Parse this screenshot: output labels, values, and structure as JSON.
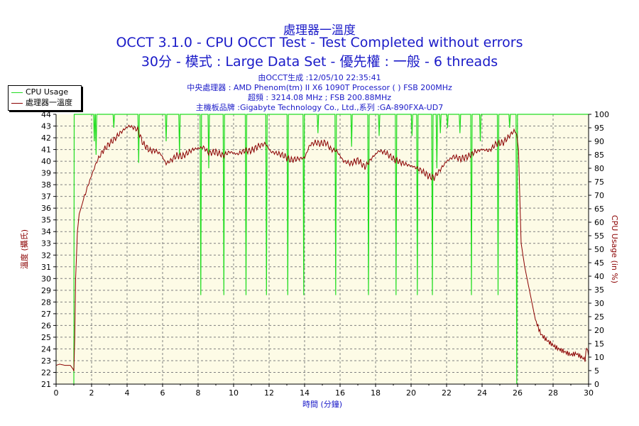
{
  "chart_data": {
    "type": "line",
    "title": "處理器一溫度",
    "subtitle": "OCCT 3.1.0 - CPU OCCT Test - Test Completed without errors",
    "subtitle2": "30分 - 模式 : Large Data Set - 優先權 : 一般 - 6 threads",
    "info_lines": [
      "由OCCT生成 :12/05/10 22:35:41",
      "中央處理器 : AMD Phenom(tm) II X6 1090T Processor (  ) FSB 200MHz",
      "超頻 : 3214.08 MHz ; FSB 200.88MHz",
      "主機板品牌 :Gigabyte Technology Co., Ltd.,系列 :GA-890FXA-UD7"
    ],
    "xlabel": "時間 (分鐘)",
    "ylabel": "溫度 (攝氏)",
    "y2label": "CPU Usage (in %)",
    "xlim": [
      0,
      30
    ],
    "ylim": [
      21,
      44
    ],
    "y2lim": [
      0,
      100
    ],
    "x_ticks": [
      "0",
      "2",
      "4",
      "6",
      "8",
      "10",
      "12",
      "14",
      "16",
      "18",
      "20",
      "22",
      "24",
      "26",
      "28",
      "30"
    ],
    "y_ticks": [
      "21",
      "22",
      "23",
      "24",
      "25",
      "26",
      "27",
      "28",
      "29",
      "30",
      "31",
      "32",
      "33",
      "34",
      "35",
      "36",
      "37",
      "38",
      "39",
      "40",
      "41",
      "42",
      "43",
      "44"
    ],
    "y2_ticks": [
      "0",
      "5",
      "10",
      "15",
      "20",
      "25",
      "30",
      "35",
      "40",
      "45",
      "50",
      "55",
      "60",
      "65",
      "70",
      "75",
      "80",
      "85",
      "90",
      "95",
      "100"
    ],
    "grid": true,
    "legend_position": "top-left",
    "colors": {
      "temperature": "#8b0000",
      "usage": "#22dd22",
      "text": "#1a1ac8",
      "plot_bg": "#fdfbe6"
    },
    "series": [
      {
        "name": "CPU Usage",
        "axis": "right",
        "x": [
          0.98,
          1.0,
          1.02,
          1.05,
          1.1,
          30
        ],
        "y": [
          0,
          0,
          100,
          100,
          100,
          100
        ],
        "dips": [
          {
            "x": 2.15,
            "y": 90
          },
          {
            "x": 2.25,
            "y": 85
          },
          {
            "x": 3.25,
            "y": 95
          },
          {
            "x": 4.65,
            "y": 82
          },
          {
            "x": 6.2,
            "y": 90
          },
          {
            "x": 6.95,
            "y": 85
          },
          {
            "x": 8.15,
            "y": 33
          },
          {
            "x": 8.6,
            "y": 80
          },
          {
            "x": 9.45,
            "y": 33
          },
          {
            "x": 10.7,
            "y": 33
          },
          {
            "x": 11.85,
            "y": 33
          },
          {
            "x": 13.05,
            "y": 33
          },
          {
            "x": 13.95,
            "y": 33
          },
          {
            "x": 14.75,
            "y": 93
          },
          {
            "x": 15.75,
            "y": 33
          },
          {
            "x": 16.65,
            "y": 88
          },
          {
            "x": 17.6,
            "y": 33
          },
          {
            "x": 18.2,
            "y": 92
          },
          {
            "x": 19.15,
            "y": 33
          },
          {
            "x": 20.05,
            "y": 92
          },
          {
            "x": 20.35,
            "y": 33
          },
          {
            "x": 21.2,
            "y": 33
          },
          {
            "x": 21.45,
            "y": 80
          },
          {
            "x": 21.65,
            "y": 93
          },
          {
            "x": 22.05,
            "y": 95
          },
          {
            "x": 22.75,
            "y": 93
          },
          {
            "x": 23.4,
            "y": 33
          },
          {
            "x": 23.9,
            "y": 90
          },
          {
            "x": 24.9,
            "y": 33
          },
          {
            "x": 25.55,
            "y": 95
          },
          {
            "x": 25.95,
            "y": 0
          }
        ]
      },
      {
        "name": "處理器一溫度",
        "axis": "left",
        "x": [
          0,
          0.2,
          0.5,
          0.8,
          0.95,
          1.0,
          1.05,
          1.1,
          1.2,
          1.3,
          1.5,
          1.7,
          2.0,
          2.3,
          2.6,
          3.0,
          3.3,
          3.6,
          3.9,
          4.1,
          4.3,
          4.6,
          4.9,
          5.3,
          5.6,
          5.9,
          6.2,
          6.5,
          6.8,
          7.1,
          7.4,
          7.7,
          8.0,
          8.3,
          8.6,
          9.0,
          9.4,
          9.8,
          10.2,
          10.6,
          11.0,
          11.4,
          11.8,
          12.1,
          12.4,
          12.8,
          13.2,
          13.6,
          14.0,
          14.3,
          14.6,
          14.9,
          15.2,
          15.5,
          15.8,
          16.2,
          16.6,
          17.0,
          17.4,
          17.8,
          18.2,
          18.6,
          19.0,
          19.4,
          19.8,
          20.2,
          20.6,
          21.0,
          21.3,
          21.6,
          22.0,
          22.4,
          22.8,
          23.2,
          23.6,
          24.0,
          24.4,
          24.8,
          25.2,
          25.5,
          25.8,
          25.95,
          26.05,
          26.2,
          26.4,
          26.6,
          26.8,
          27.0,
          27.3,
          27.6,
          28.0,
          28.3,
          28.6,
          29.0,
          29.3,
          29.6,
          29.8,
          29.9,
          30.0
        ],
        "y": [
          22.6,
          22.7,
          22.6,
          22.6,
          22.3,
          22.1,
          25.0,
          30.0,
          34.0,
          35.5,
          36.5,
          37.5,
          38.8,
          40.0,
          40.8,
          41.5,
          41.9,
          42.4,
          42.8,
          43.0,
          42.9,
          42.7,
          41.5,
          40.9,
          40.9,
          40.6,
          39.8,
          40.1,
          40.5,
          40.4,
          40.7,
          41.0,
          41.1,
          41.2,
          40.7,
          40.8,
          40.5,
          40.8,
          40.6,
          40.9,
          40.9,
          41.3,
          41.5,
          40.8,
          40.7,
          40.5,
          40.1,
          40.2,
          40.3,
          41.4,
          41.6,
          41.5,
          41.6,
          41.0,
          40.9,
          40.0,
          39.8,
          40.1,
          39.5,
          40.3,
          40.9,
          40.7,
          40.2,
          39.9,
          39.7,
          39.5,
          39.2,
          38.7,
          38.6,
          39.2,
          40.0,
          40.4,
          40.2,
          40.4,
          40.8,
          41.0,
          40.9,
          41.5,
          41.6,
          42.1,
          42.6,
          42.3,
          41.0,
          33.0,
          31.0,
          29.5,
          28.0,
          26.5,
          25.3,
          24.8,
          24.3,
          24.0,
          23.8,
          23.5,
          23.6,
          23.3,
          23.1,
          24.2,
          23.4
        ]
      }
    ]
  }
}
